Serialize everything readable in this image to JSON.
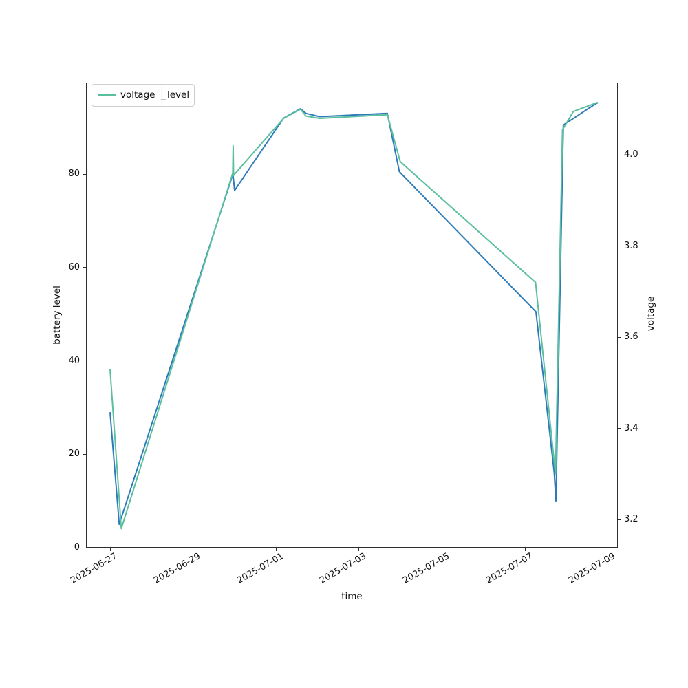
{
  "figure": {
    "background": "#ffffff"
  },
  "legend": {
    "label_primary": "voltage",
    "label_separator": "_",
    "label_secondary": "level",
    "sample_color": "#5abf9e",
    "position": "upper left"
  },
  "axes": {
    "x": {
      "label": "time",
      "tick_labels": [
        "2025-06-27",
        "2025-06-29",
        "2025-07-01",
        "2025-07-03",
        "2025-07-05",
        "2025-07-07",
        "2025-07-09"
      ],
      "tick_days": [
        0,
        2,
        4,
        6,
        8,
        10,
        12
      ]
    },
    "y_left": {
      "label": "battery level",
      "ticks": [
        0,
        20,
        40,
        60,
        80
      ]
    },
    "y_right": {
      "label": "voltage",
      "ticks": [
        "3.2",
        "3.4",
        "3.6",
        "3.8",
        "4.0"
      ]
    }
  },
  "chart_data": {
    "type": "line",
    "title": "",
    "xlabel": "time",
    "ylabel_left": "battery level",
    "ylabel_right": "voltage",
    "x_unit": "days since 2025-06-27 00:00",
    "x_tick_labels": [
      "2025-06-27",
      "2025-06-29",
      "2025-07-01",
      "2025-07-03",
      "2025-07-05",
      "2025-07-07",
      "2025-07-09"
    ],
    "ylim_left": [
      0,
      99.6
    ],
    "ylim_right": [
      3.14,
      4.16
    ],
    "grid": false,
    "legend_entries": [
      "voltage level"
    ],
    "legend_position": "upper left",
    "series": [
      {
        "name": "battery level",
        "axis": "left",
        "color": "#2d7bb9",
        "points": [
          [
            0.0,
            29
          ],
          [
            0.22,
            5
          ],
          [
            2.96,
            80
          ],
          [
            3.0,
            76.5
          ],
          [
            4.18,
            92
          ],
          [
            4.59,
            94
          ],
          [
            4.72,
            93
          ],
          [
            5.05,
            92.3
          ],
          [
            6.68,
            93
          ],
          [
            6.97,
            80.5
          ],
          [
            10.26,
            50.5
          ],
          [
            10.7,
            16
          ],
          [
            10.74,
            10
          ],
          [
            10.92,
            90.5
          ],
          [
            11.69,
            95
          ],
          [
            11.75,
            95.3
          ]
        ]
      },
      {
        "name": "voltage level",
        "axis": "right",
        "color": "#5abf9e",
        "points": [
          [
            0.0,
            3.53
          ],
          [
            0.27,
            3.18
          ],
          [
            2.955,
            3.96
          ],
          [
            2.965,
            4.02
          ],
          [
            2.975,
            3.955
          ],
          [
            4.18,
            4.08
          ],
          [
            4.59,
            4.1
          ],
          [
            4.72,
            4.085
          ],
          [
            5.05,
            4.08
          ],
          [
            6.68,
            4.088
          ],
          [
            6.99,
            3.985
          ],
          [
            10.25,
            3.72
          ],
          [
            10.73,
            3.3
          ],
          [
            10.9,
            4.055
          ],
          [
            11.16,
            4.095
          ],
          [
            11.69,
            4.113
          ],
          [
            11.75,
            4.115
          ]
        ]
      }
    ]
  }
}
